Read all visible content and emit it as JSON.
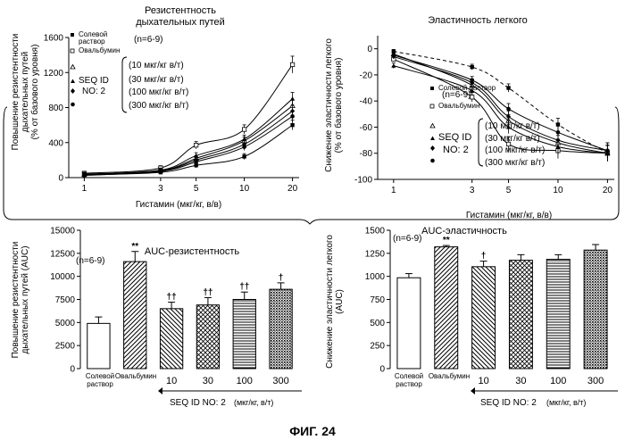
{
  "figure_label": "ФИГ. 24",
  "chart_data": [
    {
      "type": "line",
      "title": "Резистентность дыхательных путей",
      "title_line1": "Резистентность",
      "title_line2": "дыхательных путей",
      "xlabel": "Гистамин (мкг/кг, в/в)",
      "ylabel_line1": "Повышение резистентности",
      "ylabel_line2": "дыхательных путей",
      "ylabel_line3": "(% от базового уровня)",
      "n_note": "(n=6-9)",
      "x_scale": "log",
      "x_ticks": [
        1,
        3,
        5,
        10,
        20
      ],
      "y_ticks": [
        0,
        400,
        800,
        1200,
        1600
      ],
      "ylim": [
        0,
        1600
      ],
      "xlim": [
        0.8,
        22
      ],
      "x": [
        1,
        3,
        5,
        10,
        20
      ],
      "series": [
        {
          "name": "Солевой раствор",
          "marker": "square-filled",
          "values": [
            30,
            60,
            140,
            240,
            600
          ]
        },
        {
          "name": "Овальбумин",
          "marker": "square-open",
          "values": [
            50,
            110,
            370,
            550,
            1290
          ]
        },
        {
          "name": "10 мкг/кг в/т",
          "marker": "triangle-open",
          "values": [
            35,
            80,
            220,
            420,
            820
          ]
        },
        {
          "name": "30 мкг/кг в/т",
          "marker": "triangle-filled",
          "values": [
            40,
            85,
            250,
            440,
            900
          ]
        },
        {
          "name": "100 мкг/кг в/т",
          "marker": "diamond-filled",
          "values": [
            30,
            75,
            200,
            380,
            760
          ]
        },
        {
          "name": "300 мкг/кг в/т",
          "marker": "circle-filled",
          "values": [
            25,
            70,
            180,
            350,
            700
          ]
        }
      ],
      "legend": {
        "saline_line1": "Солевой",
        "saline_line2": "раствор",
        "ova": "Овальбумин",
        "seq1": "SEQ ID",
        "seq2": "NO: 2",
        "d10": "(10 мкг/кг в/т)",
        "d30": "(30 мкг/кг в/т)",
        "d100": "(100 мкг/кг в/т)",
        "d300": "(300 мкг/кг в/т)"
      }
    },
    {
      "type": "line",
      "title": "Эластичность легкого",
      "xlabel": "Гистамин (мкг/кг, в/в)",
      "ylabel_line1": "Снижение эластичности легкого",
      "ylabel_line2": "(% от базового уровня)",
      "n_note": "(n=6-9)",
      "x_scale": "log",
      "x_ticks": [
        1,
        3,
        5,
        10,
        20
      ],
      "y_ticks": [
        0,
        -20,
        -40,
        -60,
        -80,
        -100
      ],
      "ylim": [
        -100,
        10
      ],
      "xlim": [
        0.8,
        22
      ],
      "x": [
        1,
        3,
        5,
        10,
        20
      ],
      "series": [
        {
          "name": "Солевой раствор",
          "marker": "square-filled",
          "dashed": true,
          "values": [
            -2,
            -14,
            -30,
            -58,
            -80
          ]
        },
        {
          "name": "Овальбумин",
          "marker": "square-open",
          "values": [
            -8,
            -37,
            -73,
            -78,
            -80
          ]
        },
        {
          "name": "10 мкг/кг в/т",
          "marker": "triangle-open",
          "values": [
            -4,
            -28,
            -55,
            -72,
            -80
          ]
        },
        {
          "name": "30 мкг/кг в/т",
          "marker": "triangle-filled",
          "values": [
            -13,
            -32,
            -60,
            -75,
            -80
          ]
        },
        {
          "name": "100 мкг/кг в/т",
          "marker": "diamond-filled",
          "values": [
            -6,
            -26,
            -52,
            -70,
            -78
          ]
        },
        {
          "name": "300 мкг/кг в/т",
          "marker": "circle-filled",
          "values": [
            -5,
            -24,
            -46,
            -64,
            -78
          ]
        }
      ],
      "legend": {
        "saline": "Солевой раствор",
        "ova": "Овальбумин",
        "seq1": "SEQ ID",
        "seq2": "NO: 2",
        "d10": "(10 мкг/кг в/т)",
        "d30": "(30 мкг/кг в/т)",
        "d100": "(100 мкг/кг в/т)",
        "d300": "(300 мкг/кг в/т)"
      }
    },
    {
      "type": "bar",
      "title": "AUC-резистентность",
      "ylabel_line1": "Повышение резистентности",
      "ylabel_line2": "дыхательных путей (AUC)",
      "n_note": "(n=6-9)",
      "categories": [
        "Солевой раствор",
        "Овальбумин",
        "10",
        "30",
        "100",
        "300"
      ],
      "cat_saline_line1": "Солевой",
      "cat_saline_line2": "раствор",
      "cat_ova": "Овальбумин",
      "values": [
        4900,
        11600,
        6500,
        6900,
        7500,
        8600
      ],
      "errors": [
        700,
        1100,
        700,
        800,
        800,
        700
      ],
      "significance": [
        "",
        "**",
        "††",
        "††",
        "††",
        "†"
      ],
      "ylim": [
        0,
        15000
      ],
      "y_ticks": [
        0,
        2500,
        5000,
        7500,
        10000,
        12500,
        15000
      ],
      "group_label": "SEQ ID NO: 2",
      "group_unit": "(мкг/кг, в/т)"
    },
    {
      "type": "bar",
      "title": "AUC-эластичность",
      "ylabel_line1": "Снижение эластичности легкого",
      "ylabel_line2": "(AUC)",
      "n_note": "(n=6-9)",
      "categories": [
        "Солевой раствор",
        "Овальбумин",
        "10",
        "30",
        "100",
        "300"
      ],
      "cat_saline_line1": "Солевой",
      "cat_saline_line2": "раствор",
      "cat_ova": "Овальбумин",
      "values": [
        985,
        1320,
        1105,
        1175,
        1185,
        1285
      ],
      "errors": [
        45,
        15,
        60,
        60,
        50,
        60
      ],
      "significance": [
        "",
        "**",
        "†",
        "",
        "",
        ""
      ],
      "ylim": [
        0,
        1500
      ],
      "y_ticks": [
        0,
        250,
        500,
        750,
        1000,
        1250,
        1500
      ],
      "group_label": "SEQ ID NO: 2",
      "group_unit": "(мкг/кг, в/т)"
    }
  ]
}
